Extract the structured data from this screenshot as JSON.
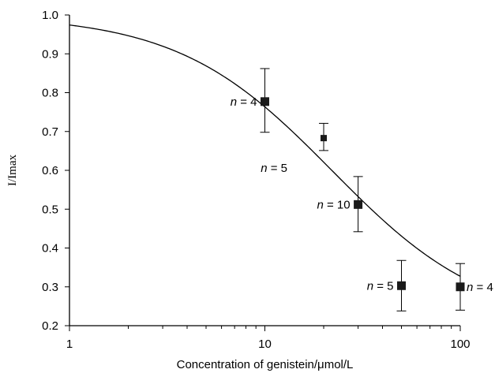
{
  "chart_data": {
    "type": "scatter",
    "title": "",
    "xlabel": "Concentration of genistein/μmol/L",
    "ylabel": "I/Imax",
    "xscale": "log",
    "xlim": [
      1,
      100
    ],
    "ylim": [
      0.2,
      1.0
    ],
    "grid": false,
    "legend": "none",
    "x_ticks": [
      {
        "value": 1,
        "label": "1"
      },
      {
        "value": 10,
        "label": "10"
      },
      {
        "value": 100,
        "label": "100"
      }
    ],
    "y_ticks": [
      {
        "value": 0.2,
        "label": "0.2"
      },
      {
        "value": 0.3,
        "label": "0.3"
      },
      {
        "value": 0.4,
        "label": "0.4"
      },
      {
        "value": 0.5,
        "label": "0.5"
      },
      {
        "value": 0.6,
        "label": "0.6"
      },
      {
        "value": 0.7,
        "label": "0.7"
      },
      {
        "value": 0.8,
        "label": "0.8"
      },
      {
        "value": 0.9,
        "label": "0.9"
      },
      {
        "value": 1.0,
        "label": "1.0"
      }
    ],
    "points": [
      {
        "x": 10,
        "y": 0.777,
        "err_low": 0.698,
        "err_high": 0.862,
        "size": "large"
      },
      {
        "x": 20,
        "y": 0.683,
        "err_low": 0.651,
        "err_high": 0.721,
        "size": "small"
      },
      {
        "x": 30,
        "y": 0.512,
        "err_low": 0.442,
        "err_high": 0.584,
        "size": "large"
      },
      {
        "x": 50,
        "y": 0.303,
        "err_low": 0.238,
        "err_high": 0.368,
        "size": "large"
      },
      {
        "x": 100,
        "y": 0.3,
        "err_low": 0.24,
        "err_high": 0.36,
        "size": "large"
      }
    ],
    "fit_curve": {
      "type": "logistic",
      "top": 1.0,
      "bottom": 0.2,
      "ec50": 22,
      "hill": 1.1
    },
    "annotations": [
      {
        "n_text": "n",
        "rest": " = 4",
        "x": 10,
        "y": 0.777,
        "anchor": "left-of-point"
      },
      {
        "n_text": "n",
        "rest": " = 5",
        "x": 20,
        "y": 0.683,
        "anchor": "below-left"
      },
      {
        "n_text": "n",
        "rest": " = 10",
        "x": 30,
        "y": 0.512,
        "anchor": "left-of-point"
      },
      {
        "n_text": "n",
        "rest": " = 5",
        "x": 50,
        "y": 0.303,
        "anchor": "left-of-point"
      },
      {
        "n_text": "n",
        "rest": " = 4",
        "x": 100,
        "y": 0.3,
        "anchor": "right-of-point"
      }
    ]
  }
}
